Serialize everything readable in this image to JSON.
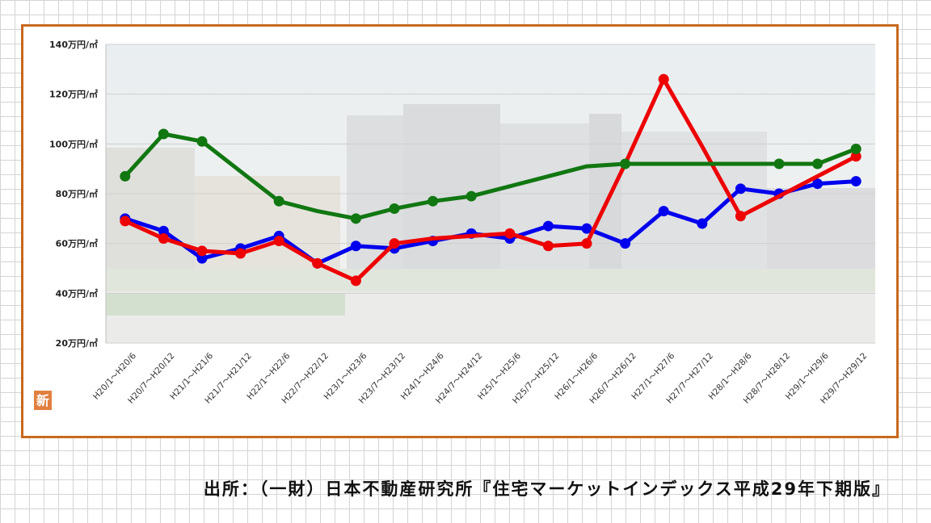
{
  "chart_data": {
    "type": "line",
    "title": "",
    "xlabel": "",
    "ylabel": "",
    "ylim": [
      20,
      140
    ],
    "yticks": [
      20,
      40,
      60,
      80,
      100,
      120,
      140
    ],
    "ytick_unit": "万円/㎡",
    "grid": "horizontal",
    "legend": "none",
    "categories": [
      "H20/1～H20/6",
      "H20/7～H20/12",
      "H21/1～H21/6",
      "H21/7～H21/12",
      "H22/1～H22/6",
      "H22/7～H22/12",
      "H23/1～H23/6",
      "H23/7～H23/12",
      "H24/1～H24/6",
      "H24/7～H24/12",
      "H25/1～H25/6",
      "H25/7～H25/12",
      "H26/1～H26/6",
      "H26/7～H26/12",
      "H27/1～H27/6",
      "H27/7～H27/12",
      "H28/1～H28/6",
      "H28/7～H28/12",
      "H29/1～H29/6",
      "H29/7～H29/12"
    ],
    "series": [
      {
        "color": "#0000ee",
        "values": [
          70,
          65,
          54,
          58,
          63,
          52,
          59,
          58,
          61,
          64,
          62,
          67,
          66,
          60,
          73,
          68,
          82,
          80,
          84,
          85
        ],
        "markers": [
          true,
          true,
          true,
          true,
          true,
          true,
          true,
          true,
          true,
          true,
          true,
          true,
          true,
          true,
          true,
          true,
          true,
          true,
          true,
          true
        ]
      },
      {
        "color": "#ee0000",
        "values": [
          69,
          62,
          57,
          56,
          61,
          52,
          45,
          60,
          62,
          63,
          64,
          59,
          60,
          92,
          126,
          99,
          71,
          79,
          87,
          95
        ],
        "markers": [
          true,
          true,
          true,
          true,
          true,
          true,
          true,
          true,
          false,
          false,
          true,
          true,
          true,
          false,
          true,
          false,
          true,
          false,
          false,
          true
        ]
      },
      {
        "color": "#117711",
        "values": [
          87,
          104,
          101,
          89,
          77,
          73,
          70,
          74,
          77,
          79,
          83,
          87,
          91,
          92,
          92,
          92,
          92,
          92,
          92,
          98
        ],
        "markers": [
          true,
          true,
          true,
          false,
          true,
          false,
          true,
          true,
          true,
          true,
          false,
          false,
          false,
          true,
          false,
          false,
          false,
          true,
          true,
          true
        ]
      }
    ]
  },
  "badge": {
    "text": "新",
    "color": "#e07f3e"
  },
  "frame_color": "#c8691f",
  "source_text": "出所：（一財）日本不動産研究所『住宅マーケットインデックス平成29年下期版』"
}
